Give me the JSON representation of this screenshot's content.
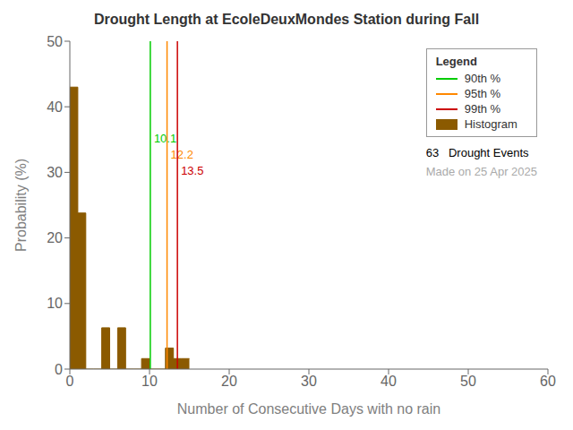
{
  "chart_data": {
    "type": "histogram",
    "title": "Drought Length at EcoleDeuxMondes Station during Fall",
    "x_label": "Number of Consecutive Days with no rain",
    "y_label": "Probability (%)",
    "bins": [
      0,
      1,
      2,
      3,
      4,
      5,
      6,
      7,
      8,
      9,
      10,
      11,
      12,
      13,
      14,
      15
    ],
    "series": [
      {
        "name": "Histogram",
        "color": "#8B5A00",
        "values": [
          43.0,
          23.8,
          0.0,
          0.0,
          6.3,
          0.0,
          6.3,
          0.0,
          0.0,
          1.6,
          0.0,
          0.0,
          3.2,
          1.6,
          1.6
        ]
      }
    ],
    "xlim": [
      0,
      60
    ],
    "ylim": [
      0,
      50
    ],
    "xticks": [
      0,
      10,
      20,
      30,
      40,
      50,
      60
    ],
    "yticks": [
      0,
      10,
      20,
      30,
      40,
      50
    ],
    "grid": false,
    "legend": "upper right",
    "legend_title": "Legend",
    "vlines": [
      {
        "name": "90th %",
        "x": 10.1,
        "color": "#00cc00"
      },
      {
        "name": "95th %",
        "x": 12.2,
        "color": "#ff8800"
      },
      {
        "name": "99th %",
        "x": 13.5,
        "color": "#cc0000"
      }
    ],
    "annotations": [
      {
        "text": "63   Drought Events"
      },
      {
        "text": "Made on 25 Apr 2025",
        "color": "#aaaaaa"
      }
    ]
  }
}
